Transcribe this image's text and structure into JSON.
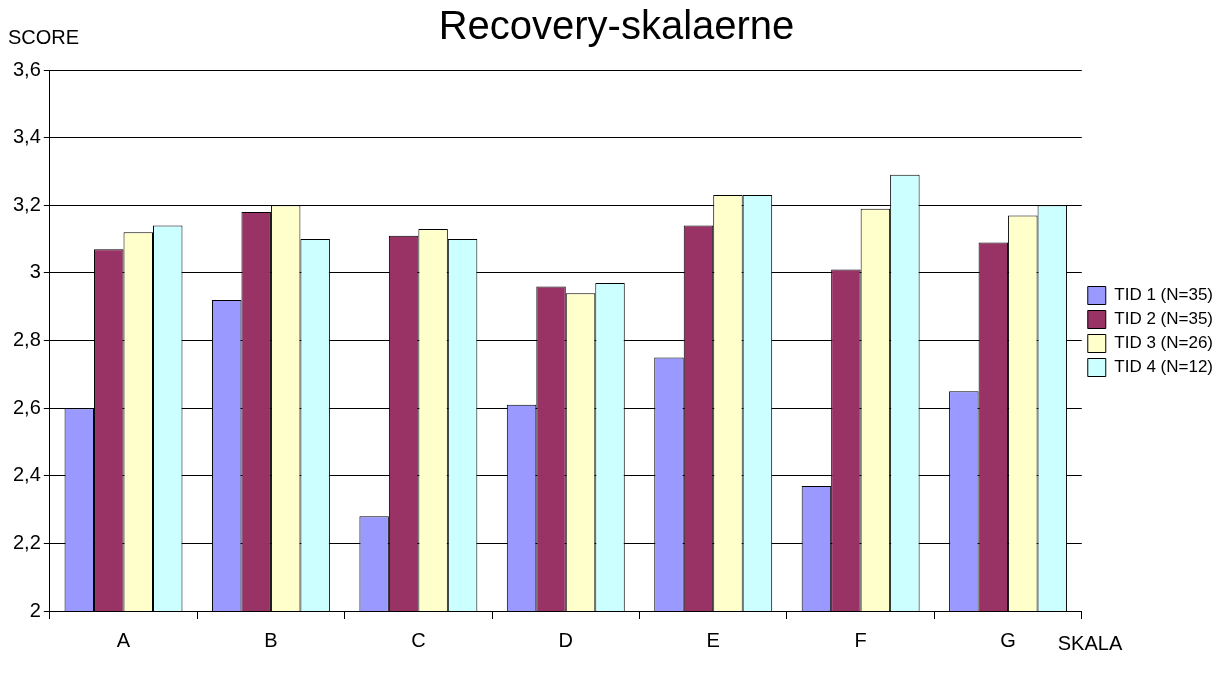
{
  "chart_data": {
    "type": "bar",
    "title": "Recovery-skalaerne",
    "xlabel": "SKALA",
    "ylabel": "SCORE",
    "categories": [
      "A",
      "B",
      "C",
      "D",
      "E",
      "F",
      "G"
    ],
    "series": [
      {
        "name": "TID 1 (N=35)",
        "color": "#9999ff",
        "values": [
          2.6,
          2.92,
          2.28,
          2.61,
          2.75,
          2.37,
          2.65
        ]
      },
      {
        "name": "TID 2 (N=35)",
        "color": "#993366",
        "values": [
          3.07,
          3.18,
          3.11,
          2.96,
          3.14,
          3.01,
          3.09
        ]
      },
      {
        "name": "TID 3 (N=26)",
        "color": "#ffffcc",
        "values": [
          3.12,
          3.2,
          3.13,
          2.94,
          3.23,
          3.19,
          3.17
        ]
      },
      {
        "name": "TID 4 (N=12)",
        "color": "#ccffff",
        "values": [
          3.14,
          3.1,
          3.1,
          2.97,
          3.23,
          3.29,
          3.2
        ]
      }
    ],
    "ylim": [
      2,
      3.6
    ],
    "yticks": [
      2,
      {
        "value": 2.2,
        "label": "2,2"
      },
      {
        "value": 2.4,
        "label": "2,4"
      },
      {
        "value": 2.6,
        "label": "2,6"
      },
      {
        "value": 2.8,
        "label": "2,8"
      },
      3,
      {
        "value": 3.2,
        "label": "3,2"
      },
      {
        "value": 3.4,
        "label": "3,4"
      },
      {
        "value": 3.6,
        "label": "3,6"
      }
    ],
    "grid": "y",
    "legend": "right"
  }
}
